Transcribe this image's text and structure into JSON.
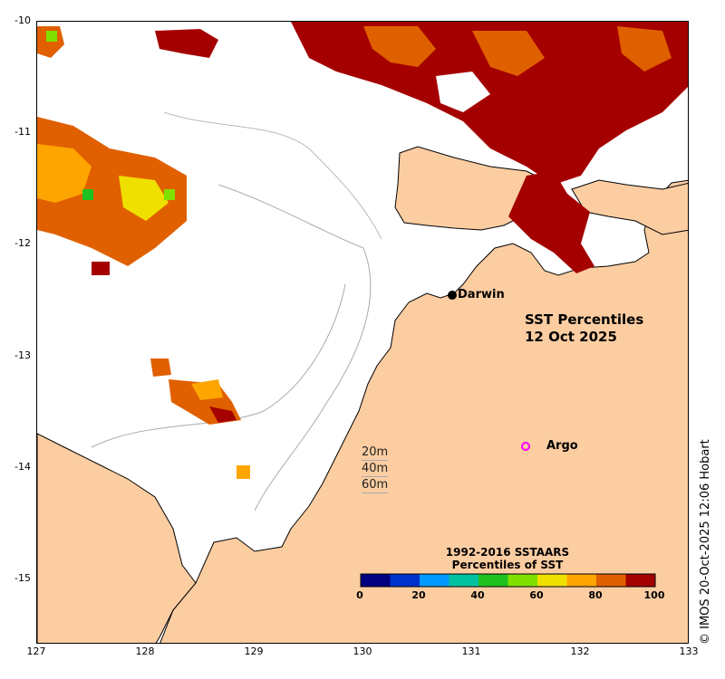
{
  "map": {
    "title_line1": "SST Percentiles",
    "title_line2": "12 Oct 2025",
    "x_ticks": [
      "127",
      "128",
      "129",
      "130",
      "131",
      "132",
      "133"
    ],
    "y_ticks": [
      "-10",
      "-11",
      "-12",
      "-13",
      "-14",
      "-15"
    ],
    "xlim": [
      127,
      133
    ],
    "ylim": [
      -15.6,
      -10
    ],
    "land_color": "#fdcda2",
    "sea_color": "#ffffff",
    "high_percentile_color": "#a50000"
  },
  "places": {
    "darwin": "Darwin",
    "argo": "Argo"
  },
  "depth_legend": {
    "d20": "20m",
    "d40": "40m",
    "d60": "60m"
  },
  "colorbar": {
    "title_line1": "1992-2016 SSTAARS",
    "title_line2": "Percentiles of SST",
    "ticks": [
      "0",
      "20",
      "40",
      "60",
      "80",
      "100"
    ],
    "colors": [
      "#000080",
      "#0033cc",
      "#0099ff",
      "#00c0a0",
      "#20c020",
      "#80e000",
      "#f0e000",
      "#ffa500",
      "#e06000",
      "#a50000"
    ]
  },
  "credit": "© IMOS 20-Oct-2025 12:06 Hobart"
}
